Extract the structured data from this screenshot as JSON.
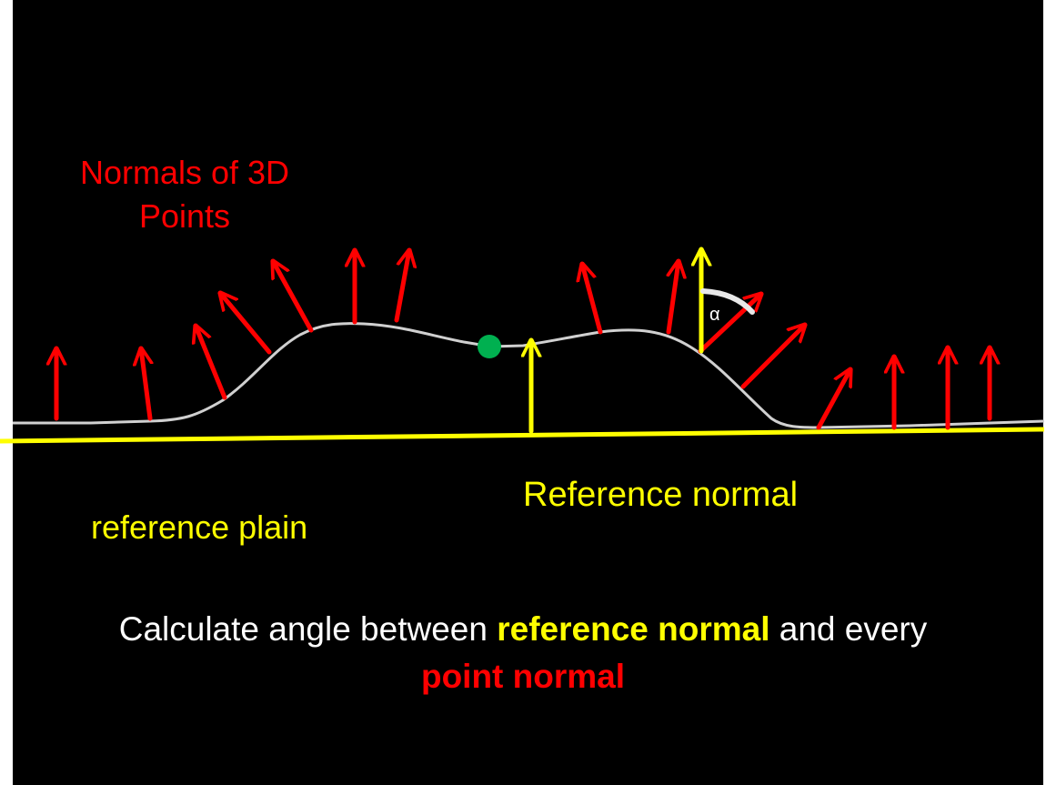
{
  "colors": {
    "background": "#000000",
    "point_normal": "#ff0000",
    "reference": "#ffff00",
    "surface": "#d0d0d0",
    "center_point": "#00b050",
    "caption_text": "#ffffff",
    "angle_arc": "#e8e8e8"
  },
  "labels": {
    "normals_title_line1": "Normals of 3D",
    "normals_title_line2": "Points",
    "reference_normal": "Reference normal",
    "reference_plain": "reference plain",
    "angle_symbol": "α"
  },
  "caption": {
    "part1": "Calculate angle between ",
    "highlight_reference": "reference normal",
    "part2": " and every",
    "highlight_point": "point normal"
  },
  "diagram": {
    "point_normal_count": 17,
    "reference_normal_count": 2,
    "angle_markers": 1,
    "center_points": 1
  }
}
